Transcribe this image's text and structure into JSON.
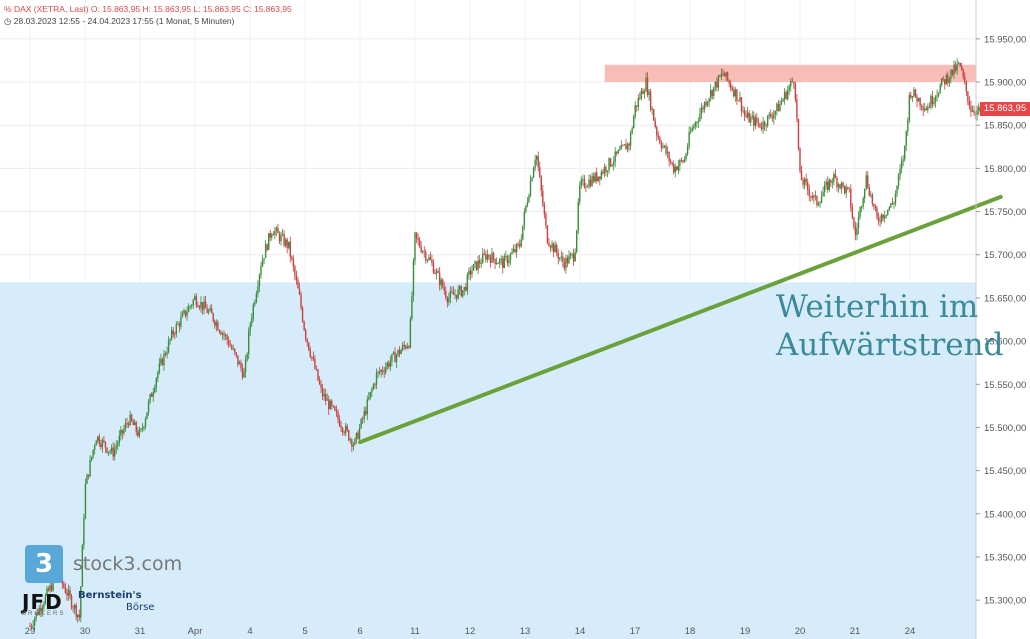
{
  "header": {
    "line1": "DAX (XETRA, Last)  O: 15.863,95  H: 15.863,95  L: 15.863,95  C: 15.863,95",
    "line2": "28.03.2023 12:55 - 24.04.2023 17:55  (1 Monat, 5 Minuten)",
    "clock_icon": "clock-icon",
    "chart_type_icon": "percent-icon"
  },
  "annotation": {
    "line1": "Weiterhin im",
    "line2": "Aufwärtstrend"
  },
  "last_price_badge": "15.863,95",
  "logos": {
    "stock3_box": "3",
    "stock3_text": "stock3.com",
    "jfd": "JFD",
    "jfd_sub": "BROKERS",
    "bernstein_1": "Bernstein's",
    "bernstein_2": "Börse"
  },
  "colors": {
    "candle_up": "#3c8c3c",
    "candle_down": "#c84040",
    "support_zone": "#d6ecfa",
    "resistance_zone": "#f9bdb8",
    "trendline": "#6aa13a",
    "annotation": "#3b8999",
    "last_badge": "#e4464a"
  },
  "chart_data": {
    "type": "candlestick",
    "title": "DAX (XETRA, Last)",
    "timeframe": "5 Minuten",
    "range": "28.03.2023 12:55 - 24.04.2023 17:55",
    "ylim": [
      15255,
      15995
    ],
    "yticks": [
      "15.300,00",
      "15.350,00",
      "15.400,00",
      "15.450,00",
      "15.500,00",
      "15.550,00",
      "15.600,00",
      "15.650,00",
      "15.700,00",
      "15.750,00",
      "15.800,00",
      "15.850,00",
      "15.900,00",
      "15.950,00"
    ],
    "ytick_values": [
      15300,
      15350,
      15400,
      15450,
      15500,
      15550,
      15600,
      15650,
      15700,
      15750,
      15800,
      15850,
      15900,
      15950
    ],
    "x_labels": [
      "29",
      "30",
      "31",
      "Apr",
      "4",
      "5",
      "6",
      "11",
      "12",
      "13",
      "14",
      "17",
      "18",
      "19",
      "20",
      "21",
      "24"
    ],
    "x_label_index": [
      0,
      1,
      2,
      3,
      4,
      5,
      6,
      7,
      8,
      9,
      10,
      11,
      12,
      13,
      14,
      15,
      16
    ],
    "session_count": 18,
    "path": [
      [
        0.0,
        15270
      ],
      [
        0.5,
        15330
      ],
      [
        0.9,
        15280
      ],
      [
        1.0,
        15430
      ],
      [
        1.2,
        15490
      ],
      [
        1.5,
        15470
      ],
      [
        1.8,
        15510
      ],
      [
        2.0,
        15490
      ],
      [
        2.3,
        15560
      ],
      [
        2.6,
        15610
      ],
      [
        2.9,
        15640
      ],
      [
        3.0,
        15650
      ],
      [
        3.3,
        15630
      ],
      [
        3.6,
        15600
      ],
      [
        3.9,
        15560
      ],
      [
        4.0,
        15620
      ],
      [
        4.2,
        15690
      ],
      [
        4.4,
        15730
      ],
      [
        4.7,
        15710
      ],
      [
        4.9,
        15650
      ],
      [
        5.0,
        15610
      ],
      [
        5.3,
        15540
      ],
      [
        5.6,
        15510
      ],
      [
        5.9,
        15480
      ],
      [
        6.0,
        15500
      ],
      [
        6.3,
        15560
      ],
      [
        6.6,
        15580
      ],
      [
        6.9,
        15600
      ],
      [
        7.0,
        15720
      ],
      [
        7.3,
        15690
      ],
      [
        7.6,
        15650
      ],
      [
        7.9,
        15660
      ],
      [
        8.0,
        15680
      ],
      [
        8.3,
        15700
      ],
      [
        8.6,
        15690
      ],
      [
        8.9,
        15710
      ],
      [
        9.0,
        15750
      ],
      [
        9.2,
        15820
      ],
      [
        9.4,
        15720
      ],
      [
        9.7,
        15690
      ],
      [
        9.9,
        15700
      ],
      [
        10.0,
        15780
      ],
      [
        10.3,
        15790
      ],
      [
        10.6,
        15810
      ],
      [
        10.9,
        15830
      ],
      [
        11.0,
        15870
      ],
      [
        11.2,
        15900
      ],
      [
        11.4,
        15840
      ],
      [
        11.7,
        15800
      ],
      [
        11.9,
        15810
      ],
      [
        12.0,
        15840
      ],
      [
        12.3,
        15880
      ],
      [
        12.6,
        15910
      ],
      [
        12.9,
        15880
      ],
      [
        13.0,
        15860
      ],
      [
        13.3,
        15850
      ],
      [
        13.6,
        15870
      ],
      [
        13.9,
        15905
      ],
      [
        14.0,
        15790
      ],
      [
        14.3,
        15760
      ],
      [
        14.6,
        15790
      ],
      [
        14.9,
        15770
      ],
      [
        15.0,
        15720
      ],
      [
        15.2,
        15790
      ],
      [
        15.4,
        15740
      ],
      [
        15.7,
        15760
      ],
      [
        15.9,
        15820
      ],
      [
        16.0,
        15890
      ],
      [
        16.3,
        15870
      ],
      [
        16.6,
        15900
      ],
      [
        16.9,
        15920
      ],
      [
        17.1,
        15870
      ],
      [
        17.3,
        15864
      ]
    ],
    "resistance_zone": [
      15900,
      15920
    ],
    "support_zone_top": 15668,
    "trendline": [
      [
        6.0,
        15483
      ],
      [
        17.65,
        15767
      ]
    ],
    "last_price": 15863.95
  }
}
